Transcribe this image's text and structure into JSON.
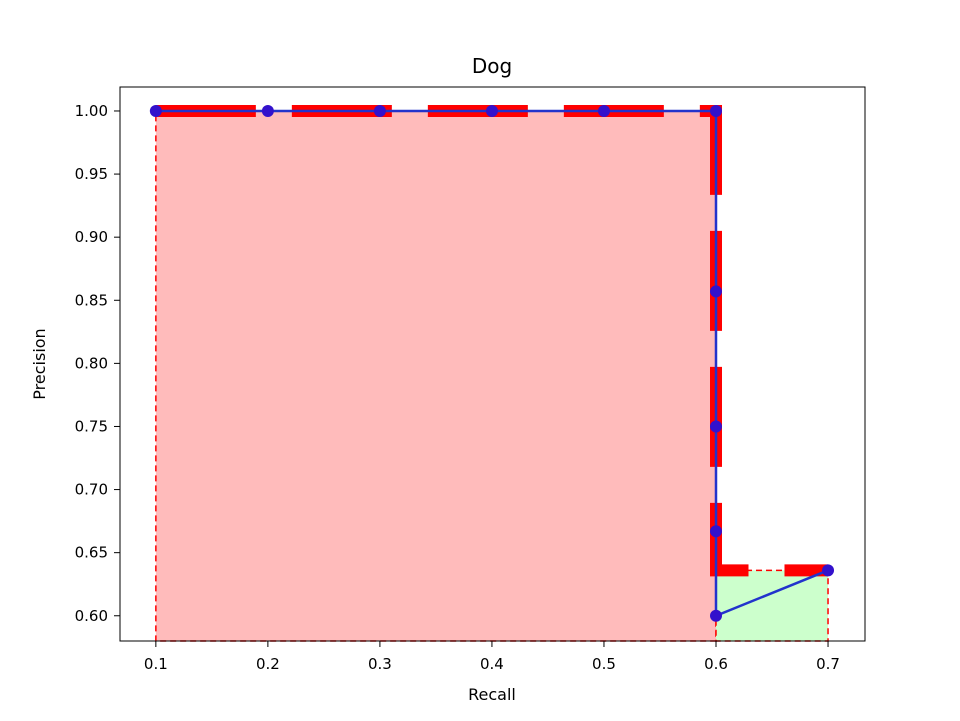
{
  "chart_data": {
    "type": "line",
    "title": "Dog",
    "xlabel": "Recall",
    "ylabel": "Precision",
    "xlim": [
      0.068,
      0.733
    ],
    "ylim": [
      0.58,
      1.019
    ],
    "xticks": [
      0.1,
      0.2,
      0.3,
      0.4,
      0.5,
      0.6,
      0.7
    ],
    "xtick_labels": [
      "0.1",
      "0.2",
      "0.3",
      "0.4",
      "0.5",
      "0.6",
      "0.7"
    ],
    "yticks": [
      0.6,
      0.65,
      0.7,
      0.75,
      0.8,
      0.85,
      0.9,
      0.95,
      1.0
    ],
    "ytick_labels": [
      "0.60",
      "0.65",
      "0.70",
      "0.75",
      "0.80",
      "0.85",
      "0.90",
      "0.95",
      "1.00"
    ],
    "grid": false,
    "pr_curve": {
      "color": "#2233cc",
      "marker_color": "#3311cc",
      "x": [
        0.1,
        0.2,
        0.3,
        0.4,
        0.5,
        0.6,
        0.6,
        0.6,
        0.6,
        0.6,
        0.7
      ],
      "y": [
        1.0,
        1.0,
        1.0,
        1.0,
        1.0,
        1.0,
        0.857,
        0.75,
        0.667,
        0.6,
        0.636
      ]
    },
    "interpolated": {
      "color": "#ff0000",
      "x": [
        0.1,
        0.6,
        0.6,
        0.7
      ],
      "y": [
        1.0,
        1.0,
        0.636,
        0.636
      ]
    },
    "areas": [
      {
        "x0": 0.1,
        "x1": 0.6,
        "y_top": 1.0,
        "fill": "#ffbbbb",
        "edge": "#ff0000"
      },
      {
        "x0": 0.6,
        "x1": 0.7,
        "y_top": 0.636,
        "fill": "#ccffcc",
        "edge": "#ff0000"
      }
    ]
  }
}
